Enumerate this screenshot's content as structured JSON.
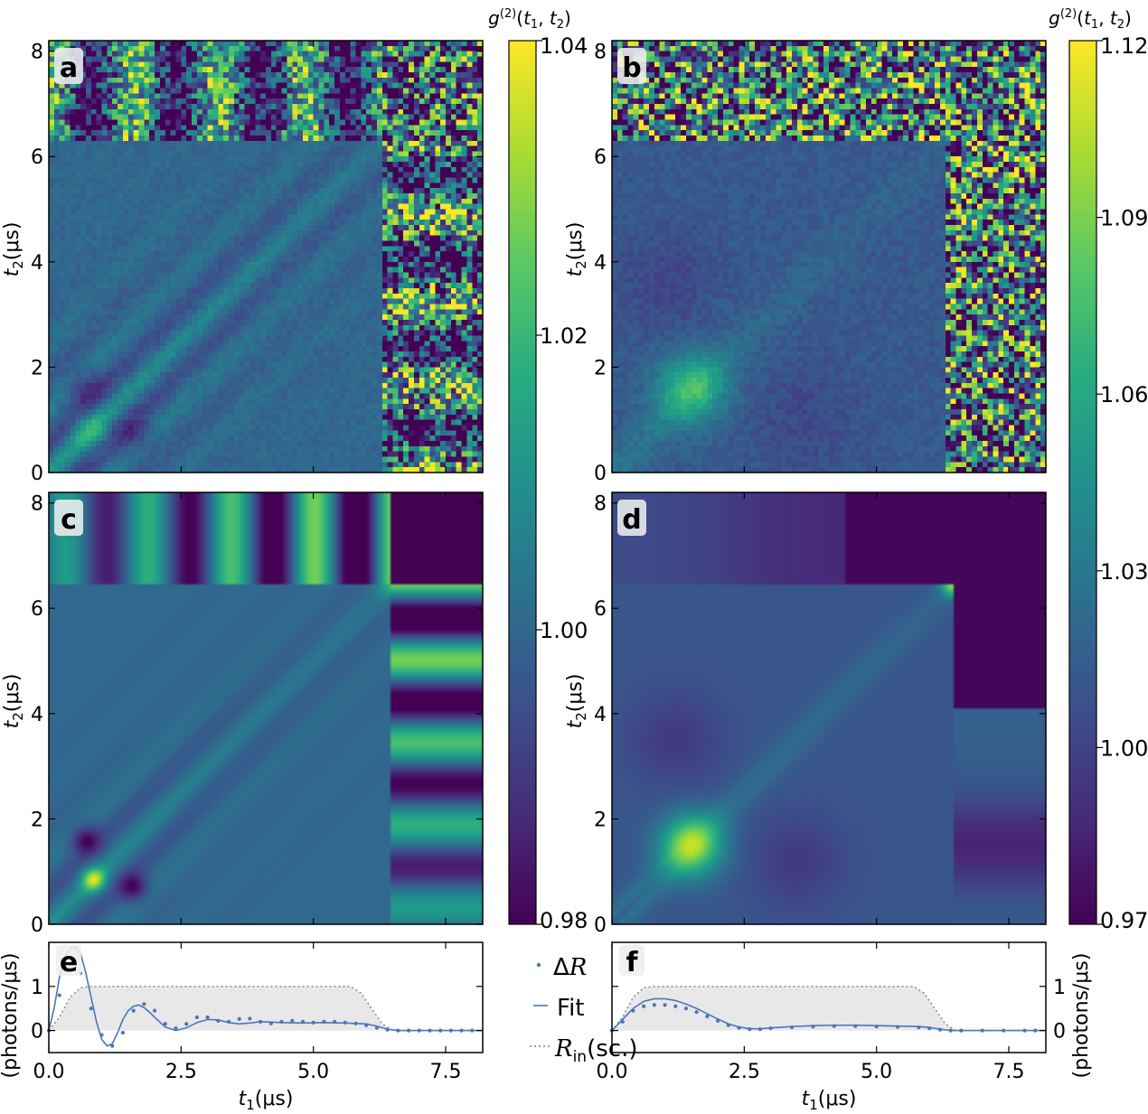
{
  "chart_data": {
    "type": "heatmap",
    "figure": {
      "colormap": "viridis",
      "colorbars": [
        {
          "title": "g^{(2)}(t_1, t_2)",
          "range": [
            0.98,
            1.04
          ],
          "ticks": [
            0.98,
            1.0,
            1.02,
            1.04
          ],
          "tick_labels": [
            "0.98",
            "1.00",
            "1.02",
            "1.04"
          ],
          "applies_to": [
            "a",
            "c"
          ]
        },
        {
          "title": "g^{(2)}(t_1, t_2)",
          "range": [
            0.97,
            1.12
          ],
          "ticks": [
            0.97,
            1.0,
            1.03,
            1.06,
            1.09,
            1.12
          ],
          "tick_labels": [
            "0.97",
            "1.00",
            "1.03",
            "1.06",
            "1.09",
            "1.12"
          ],
          "applies_to": [
            "b",
            "d"
          ]
        }
      ]
    },
    "panels": [
      {
        "id": "a",
        "label": "a",
        "kind": "measured heatmap",
        "xlim": [
          0,
          8.2
        ],
        "ylim": [
          0,
          8.2
        ],
        "ylabel": "t2 (μs)",
        "yticks": [
          0,
          2,
          4,
          6,
          8
        ],
        "pulse_end": 6.35,
        "background": 1.0,
        "features": "oscillating off-diagonal fringes; diagonal correlation band"
      },
      {
        "id": "b",
        "label": "b",
        "kind": "measured heatmap",
        "xlim": [
          0,
          8.2
        ],
        "ylim": [
          0,
          8.2
        ],
        "ylabel": "t2 (μs)",
        "yticks": [
          0,
          2,
          4,
          6,
          8
        ],
        "pulse_end": 6.35,
        "background": 1.015,
        "features": "bright lobe near (1.5, 1.6); diagonal band"
      },
      {
        "id": "c",
        "label": "c",
        "kind": "model heatmap",
        "xlim": [
          0,
          8.2
        ],
        "ylim": [
          0,
          8.2
        ],
        "ylabel": "t2 (μs)",
        "yticks": [
          0,
          2,
          4,
          6,
          8
        ],
        "pulse_end": 6.45,
        "background": 1.0,
        "features": "smooth oscillating fringes; bright spot near (0.8, 0.8)"
      },
      {
        "id": "d",
        "label": "d",
        "kind": "model heatmap",
        "xlim": [
          0,
          8.2
        ],
        "ylim": [
          0,
          8.2
        ],
        "ylabel": "t2 (μs)",
        "yticks": [
          0,
          2,
          4,
          6,
          8
        ],
        "pulse_end": 6.45,
        "background": 1.01,
        "features": "bright lobe near (1.5, 1.5); dark side lobes"
      },
      {
        "id": "e",
        "label": "e",
        "type": "line",
        "xlim": [
          0,
          8.2
        ],
        "ylim": [
          -0.5,
          2.0
        ],
        "xticks": [
          0.0,
          2.5,
          5.0,
          7.5
        ],
        "xtick_labels": [
          "0.0",
          "2.5",
          "5.0",
          "7.5"
        ],
        "yticks": [
          0,
          1
        ],
        "ytick_labels": [
          "0",
          "1"
        ],
        "ylabel": "(photons/μs)",
        "xlabel": "t1 (μs)",
        "ylabel_side": "left",
        "series": [
          {
            "name": "ΔR",
            "style": "dots",
            "x": [
              0.0,
              0.2,
              0.4,
              0.6,
              0.8,
              1.0,
              1.2,
              1.4,
              1.6,
              1.8,
              2.0,
              2.2,
              2.4,
              2.6,
              2.8,
              3.0,
              3.2,
              3.4,
              3.6,
              3.8,
              4.0,
              4.2,
              4.4,
              4.6,
              4.8,
              5.0,
              5.2,
              5.4,
              5.6,
              5.8,
              6.0,
              6.2,
              6.4,
              6.6,
              6.8,
              7.0,
              7.2,
              7.4,
              7.6,
              7.8,
              8.0
            ],
            "values": [
              0.0,
              0.8,
              1.4,
              1.3,
              0.5,
              -0.1,
              -0.35,
              -0.05,
              0.45,
              0.6,
              0.45,
              0.15,
              0.05,
              0.15,
              0.3,
              0.3,
              0.22,
              0.2,
              0.26,
              0.27,
              0.2,
              0.16,
              0.2,
              0.22,
              0.2,
              0.18,
              0.2,
              0.2,
              0.18,
              0.16,
              0.12,
              0.06,
              0.02,
              0.0,
              0.0,
              0.0,
              0.0,
              0.0,
              0.0,
              0.0,
              0.0
            ]
          },
          {
            "name": "Fit",
            "style": "line",
            "x": [
              0.0,
              0.1,
              0.2,
              0.3,
              0.4,
              0.5,
              0.6,
              0.7,
              0.8,
              0.9,
              1.0,
              1.1,
              1.2,
              1.3,
              1.4,
              1.5,
              1.6,
              1.7,
              1.8,
              1.9,
              2.0,
              2.2,
              2.4,
              2.6,
              2.8,
              3.0,
              3.2,
              3.4,
              3.6,
              3.8,
              4.0,
              4.4,
              4.8,
              5.2,
              5.6,
              6.0,
              6.2,
              6.4,
              6.6,
              7.0,
              7.5,
              8.0,
              8.2
            ],
            "values": [
              0.0,
              0.5,
              1.2,
              1.65,
              1.85,
              1.9,
              1.75,
              1.3,
              0.75,
              0.2,
              -0.2,
              -0.35,
              -0.3,
              -0.05,
              0.25,
              0.45,
              0.55,
              0.58,
              0.52,
              0.42,
              0.3,
              0.08,
              0.0,
              0.06,
              0.18,
              0.25,
              0.24,
              0.18,
              0.15,
              0.17,
              0.2,
              0.18,
              0.17,
              0.18,
              0.17,
              0.15,
              0.1,
              0.03,
              0.0,
              0.0,
              0.0,
              0.0,
              0.0
            ]
          },
          {
            "name": "R_in (sc.)",
            "style": "dotted",
            "x": [
              0.0,
              0.2,
              0.4,
              0.6,
              0.8,
              1.0,
              5.7,
              5.9,
              6.1,
              6.3,
              6.5,
              8.2
            ],
            "values": [
              0.0,
              0.3,
              0.75,
              0.97,
              1.0,
              1.0,
              1.0,
              0.85,
              0.5,
              0.15,
              0.0,
              0.0
            ]
          }
        ]
      },
      {
        "id": "f",
        "label": "f",
        "type": "line",
        "xlim": [
          0,
          8.2
        ],
        "ylim": [
          -0.5,
          2.0
        ],
        "xticks": [
          0.0,
          2.5,
          5.0,
          7.5
        ],
        "xtick_labels": [
          "0.0",
          "2.5",
          "5.0",
          "7.5"
        ],
        "yticks": [
          0,
          1
        ],
        "ytick_labels": [
          "0",
          "1"
        ],
        "ylabel": "(photons/μs)",
        "xlabel": "t1 (μs)",
        "ylabel_side": "right",
        "series": [
          {
            "name": "ΔR",
            "style": "dots",
            "x": [
              0.0,
              0.2,
              0.4,
              0.6,
              0.8,
              1.0,
              1.2,
              1.4,
              1.6,
              1.8,
              2.0,
              2.2,
              2.4,
              2.6,
              2.8,
              3.0,
              3.4,
              3.8,
              4.2,
              4.6,
              5.0,
              5.4,
              5.8,
              6.0,
              6.2,
              6.4,
              6.6,
              7.0,
              7.4,
              7.8,
              8.0
            ],
            "values": [
              0.0,
              0.2,
              0.45,
              0.55,
              0.58,
              0.58,
              0.55,
              0.5,
              0.42,
              0.32,
              0.22,
              0.12,
              0.06,
              0.03,
              0.03,
              0.05,
              0.07,
              0.09,
              0.1,
              0.1,
              0.09,
              0.08,
              0.07,
              0.05,
              0.02,
              0.0,
              0.0,
              0.0,
              0.0,
              0.0,
              0.0
            ]
          },
          {
            "name": "Fit",
            "style": "line",
            "x": [
              0.0,
              0.2,
              0.4,
              0.6,
              0.8,
              1.0,
              1.2,
              1.4,
              1.6,
              1.8,
              2.0,
              2.2,
              2.4,
              2.6,
              2.8,
              3.0,
              3.4,
              3.8,
              4.2,
              4.6,
              5.0,
              5.4,
              5.8,
              6.0,
              6.2,
              6.4,
              6.6,
              7.0,
              7.5,
              8.2
            ],
            "values": [
              0.0,
              0.25,
              0.5,
              0.66,
              0.72,
              0.72,
              0.68,
              0.6,
              0.5,
              0.38,
              0.26,
              0.15,
              0.08,
              0.04,
              0.04,
              0.06,
              0.09,
              0.11,
              0.12,
              0.12,
              0.11,
              0.1,
              0.09,
              0.07,
              0.03,
              0.0,
              0.0,
              0.0,
              0.0,
              0.0
            ]
          },
          {
            "name": "R_in (sc.)",
            "style": "dotted",
            "x": [
              0.0,
              0.2,
              0.4,
              0.6,
              0.8,
              1.0,
              5.7,
              5.9,
              6.1,
              6.3,
              6.5,
              8.2
            ],
            "values": [
              0.0,
              0.3,
              0.75,
              0.97,
              1.0,
              1.0,
              1.0,
              0.85,
              0.5,
              0.15,
              0.0,
              0.0
            ]
          }
        ]
      }
    ],
    "heatmap_axes": {
      "xlim": [
        0,
        8.2
      ],
      "xticks": [
        0.0,
        2.5,
        5.0,
        7.5
      ],
      "yticks": [
        0,
        2,
        4,
        6,
        8
      ],
      "ytick_labels": [
        "0",
        "2",
        "4",
        "6",
        "8"
      ],
      "ylabel": "t2 (μs)"
    },
    "legend": {
      "location": "between panels e and f",
      "entries": [
        {
          "name": "ΔR",
          "style": "dots"
        },
        {
          "name": "Fit",
          "style": "line"
        },
        {
          "name": "R_in (sc.)",
          "style": "dotted"
        }
      ]
    },
    "colors": {
      "data": "#4a76b8",
      "input_fill": "#e8e8e8",
      "input_line": "#808080"
    }
  }
}
